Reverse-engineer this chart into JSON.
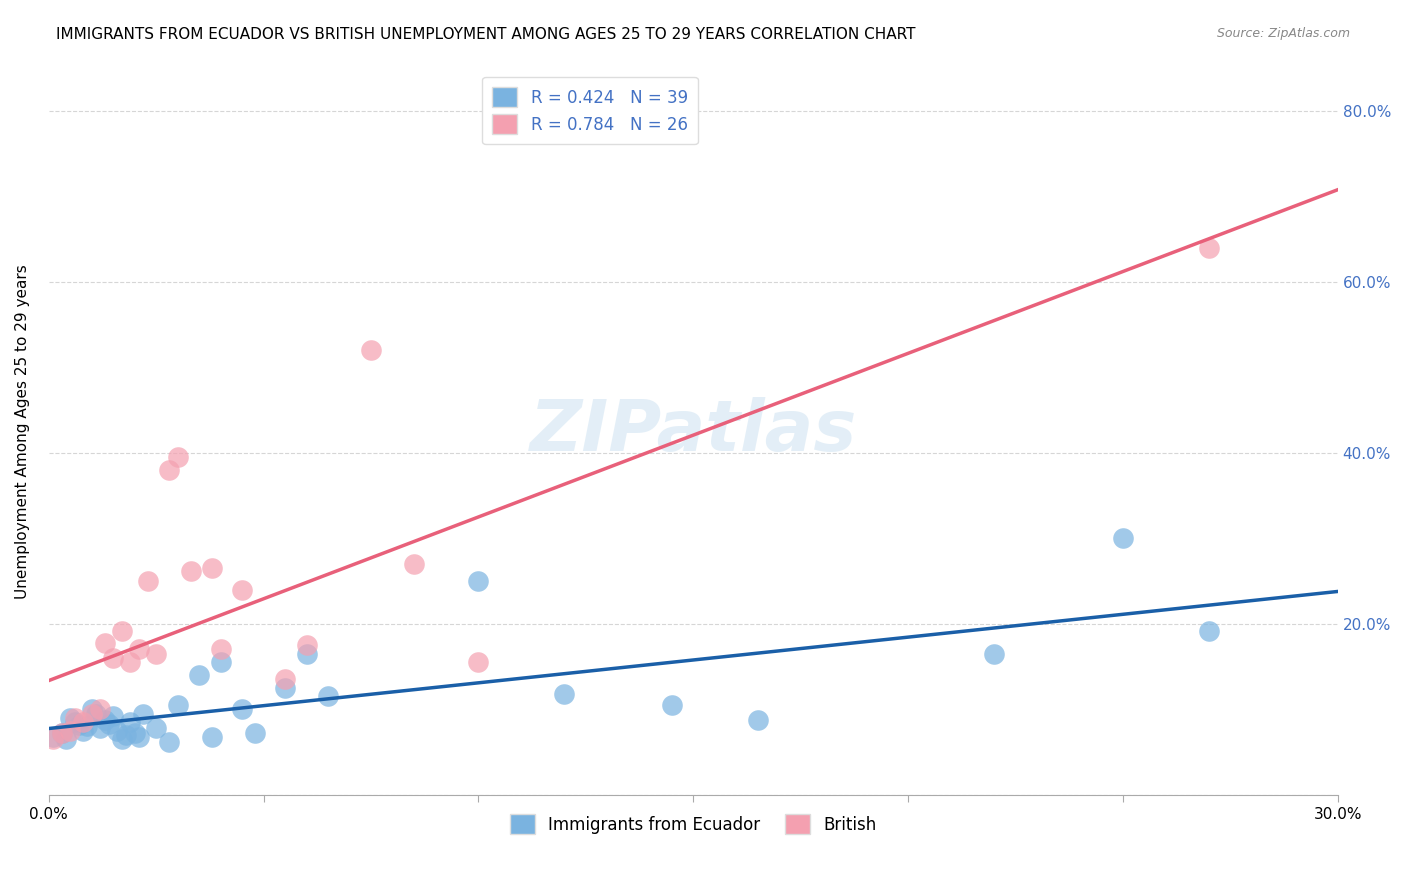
{
  "title": "IMMIGRANTS FROM ECUADOR VS BRITISH UNEMPLOYMENT AMONG AGES 25 TO 29 YEARS CORRELATION CHART",
  "source": "Source: ZipAtlas.com",
  "xlabel": "",
  "ylabel": "Unemployment Among Ages 25 to 29 years",
  "xlim": [
    0.0,
    0.3
  ],
  "ylim": [
    0.0,
    0.85
  ],
  "x_ticks": [
    0.0,
    0.05,
    0.1,
    0.15,
    0.2,
    0.25,
    0.3
  ],
  "x_tick_labels": [
    "0.0%",
    "",
    "",
    "",
    "",
    "",
    "30.0%"
  ],
  "y_ticks": [
    0.0,
    0.2,
    0.4,
    0.6,
    0.8
  ],
  "y_tick_labels_right": [
    "",
    "20.0%",
    "40.0%",
    "60.0%",
    "80.0%"
  ],
  "blue_R": "0.424",
  "blue_N": "39",
  "pink_R": "0.784",
  "pink_N": "26",
  "blue_color": "#7ab3e0",
  "pink_color": "#f4a0b0",
  "blue_line_color": "#1a5fa8",
  "pink_line_color": "#e8607a",
  "legend_blue_label": "Immigrants from Ecuador",
  "legend_pink_label": "British",
  "watermark": "ZIPatlas",
  "blue_x": [
    0.001,
    0.003,
    0.004,
    0.005,
    0.006,
    0.007,
    0.008,
    0.009,
    0.01,
    0.011,
    0.012,
    0.013,
    0.014,
    0.015,
    0.016,
    0.017,
    0.018,
    0.019,
    0.02,
    0.021,
    0.022,
    0.025,
    0.028,
    0.03,
    0.035,
    0.038,
    0.04,
    0.045,
    0.048,
    0.055,
    0.06,
    0.065,
    0.1,
    0.12,
    0.145,
    0.165,
    0.22,
    0.25,
    0.27
  ],
  "blue_y": [
    0.068,
    0.072,
    0.065,
    0.09,
    0.085,
    0.082,
    0.075,
    0.08,
    0.1,
    0.095,
    0.078,
    0.088,
    0.083,
    0.092,
    0.075,
    0.065,
    0.07,
    0.085,
    0.072,
    0.068,
    0.095,
    0.078,
    0.062,
    0.105,
    0.14,
    0.068,
    0.155,
    0.1,
    0.072,
    0.125,
    0.165,
    0.115,
    0.25,
    0.118,
    0.105,
    0.088,
    0.165,
    0.3,
    0.192
  ],
  "pink_x": [
    0.001,
    0.003,
    0.005,
    0.006,
    0.008,
    0.01,
    0.012,
    0.013,
    0.015,
    0.017,
    0.019,
    0.021,
    0.023,
    0.025,
    0.028,
    0.03,
    0.033,
    0.038,
    0.04,
    0.045,
    0.055,
    0.06,
    0.075,
    0.085,
    0.1,
    0.27
  ],
  "pink_y": [
    0.065,
    0.072,
    0.075,
    0.09,
    0.085,
    0.095,
    0.1,
    0.178,
    0.16,
    0.192,
    0.155,
    0.17,
    0.25,
    0.165,
    0.38,
    0.395,
    0.262,
    0.265,
    0.17,
    0.24,
    0.135,
    0.175,
    0.52,
    0.27,
    0.155,
    0.64
  ],
  "title_fontsize": 11,
  "source_fontsize": 9,
  "axis_label_fontsize": 11,
  "tick_fontsize": 11
}
